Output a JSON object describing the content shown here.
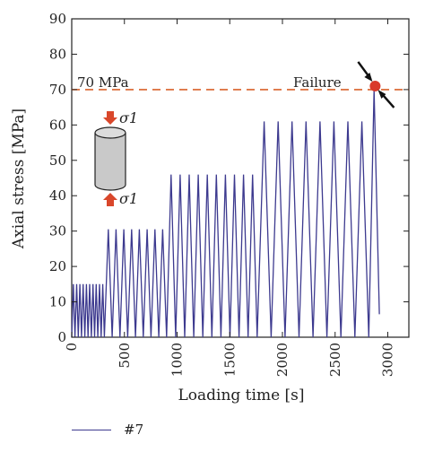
{
  "chart_data": {
    "type": "line",
    "title": "",
    "xlabel": "Loading time [s]",
    "ylabel": "Axial stress [MPa]",
    "xlim": [
      0,
      3200
    ],
    "ylim": [
      0,
      90
    ],
    "xticks": [
      0,
      500,
      1000,
      1500,
      2000,
      2500,
      3000
    ],
    "yticks": [
      0,
      10,
      20,
      30,
      40,
      50,
      60,
      70,
      80,
      90
    ],
    "grid": false,
    "legend_position": "bottom-left",
    "series": [
      {
        "name": "#7",
        "color": "#3d3a8f",
        "stages": [
          {
            "start": 0,
            "end": 310,
            "peak": 15,
            "cycles": 10
          },
          {
            "start": 310,
            "end": 900,
            "peak": 30.5,
            "cycles": 8
          },
          {
            "start": 900,
            "end": 1760,
            "peak": 46,
            "cycles": 10
          },
          {
            "start": 1760,
            "end": 2820,
            "peak": 61,
            "cycles": 8
          },
          {
            "start": 2820,
            "end": 2920,
            "peak": 70,
            "cycles": 1
          }
        ],
        "failure_point": {
          "x": 2880,
          "y": 71
        }
      }
    ],
    "reference_line": {
      "y": 70,
      "label": "70 MPa",
      "color": "#d9622b"
    },
    "annotations": {
      "failure_label": "Failure",
      "failure_marker_color": "#d93a2b",
      "specimen_label_top": "σ1",
      "specimen_label_bottom": "σ1"
    }
  }
}
